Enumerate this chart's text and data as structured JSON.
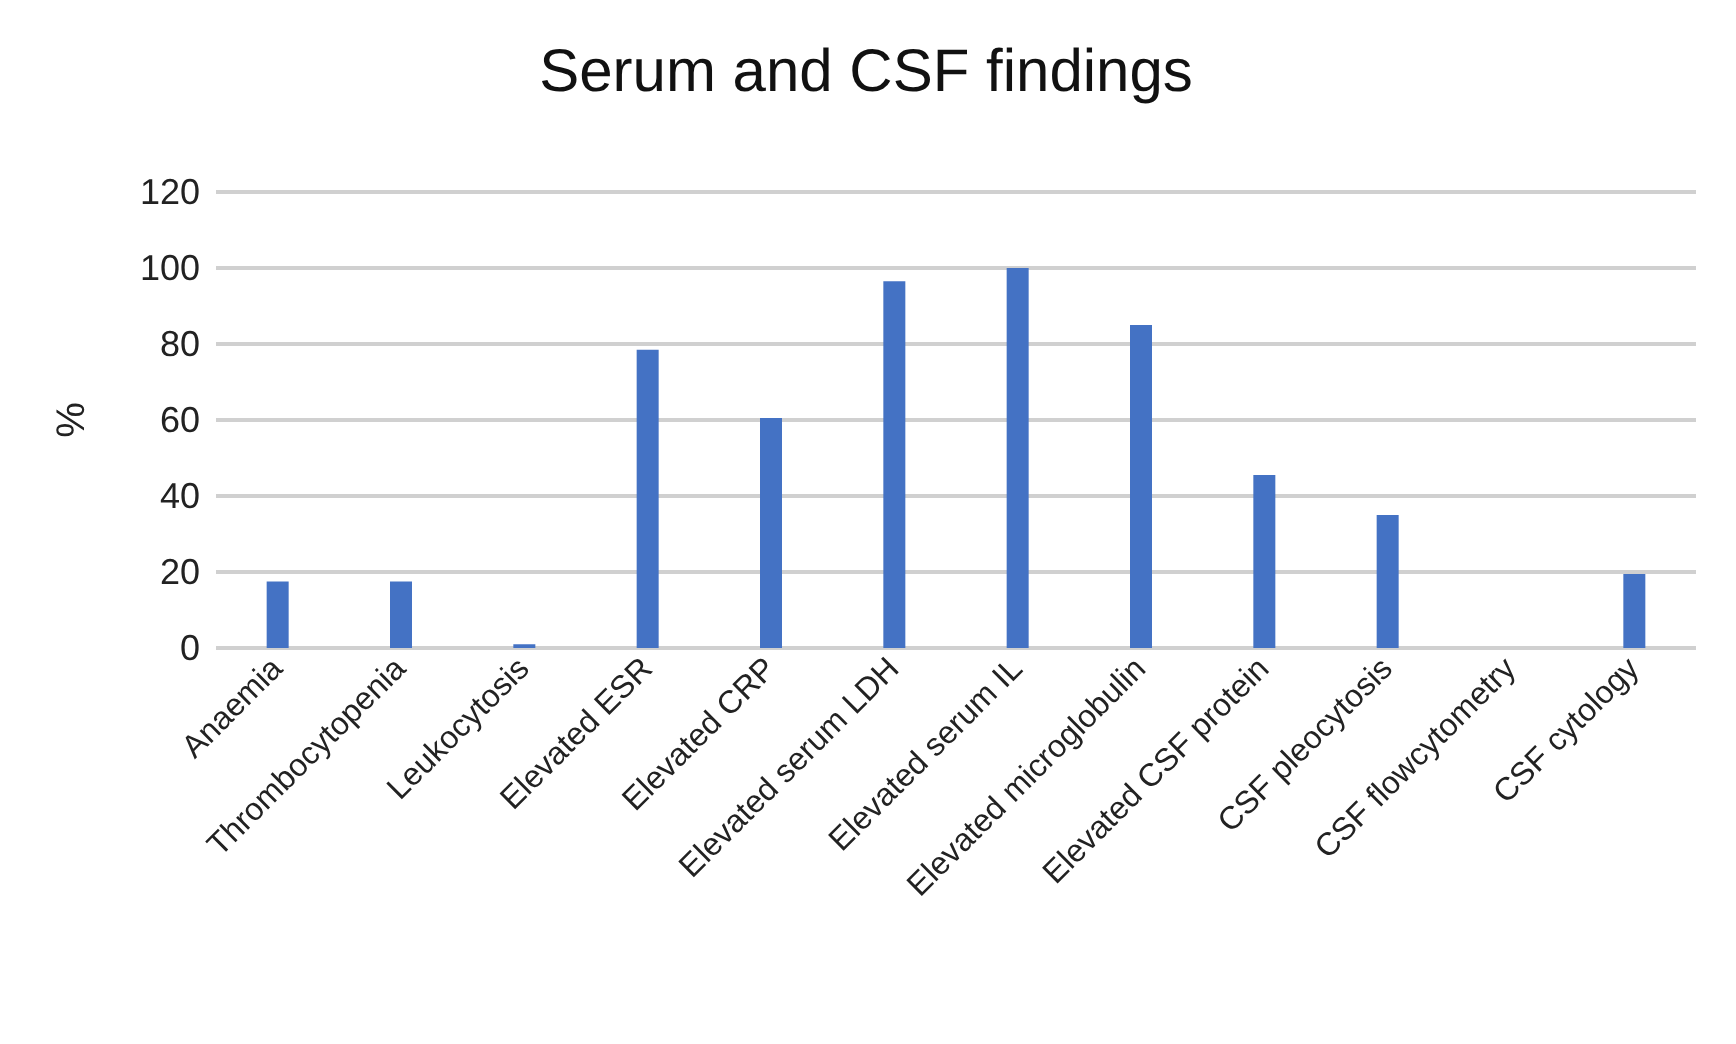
{
  "chart_data": {
    "type": "bar",
    "title": "Serum and CSF findings",
    "ylabel": "%",
    "categories": [
      "Anaemia",
      "Thrombocytopenia",
      "Leukocytosis",
      "Elevated ESR",
      "Elevated CRP",
      "Elevated serum LDH",
      "Elevated serum IL",
      "Elevated microglobulin",
      "Elevated CSF protein",
      "CSF pleocytosis",
      "CSF flowcytometry",
      "CSF cytology"
    ],
    "values": [
      17.5,
      17.5,
      1,
      78.5,
      60.5,
      96.5,
      100,
      85,
      45.5,
      35,
      0,
      19.5
    ],
    "color": "#4472c4",
    "ylim": [
      0,
      120
    ],
    "yticks": [
      0,
      20,
      40,
      60,
      80,
      100,
      120
    ],
    "grid": "y"
  }
}
